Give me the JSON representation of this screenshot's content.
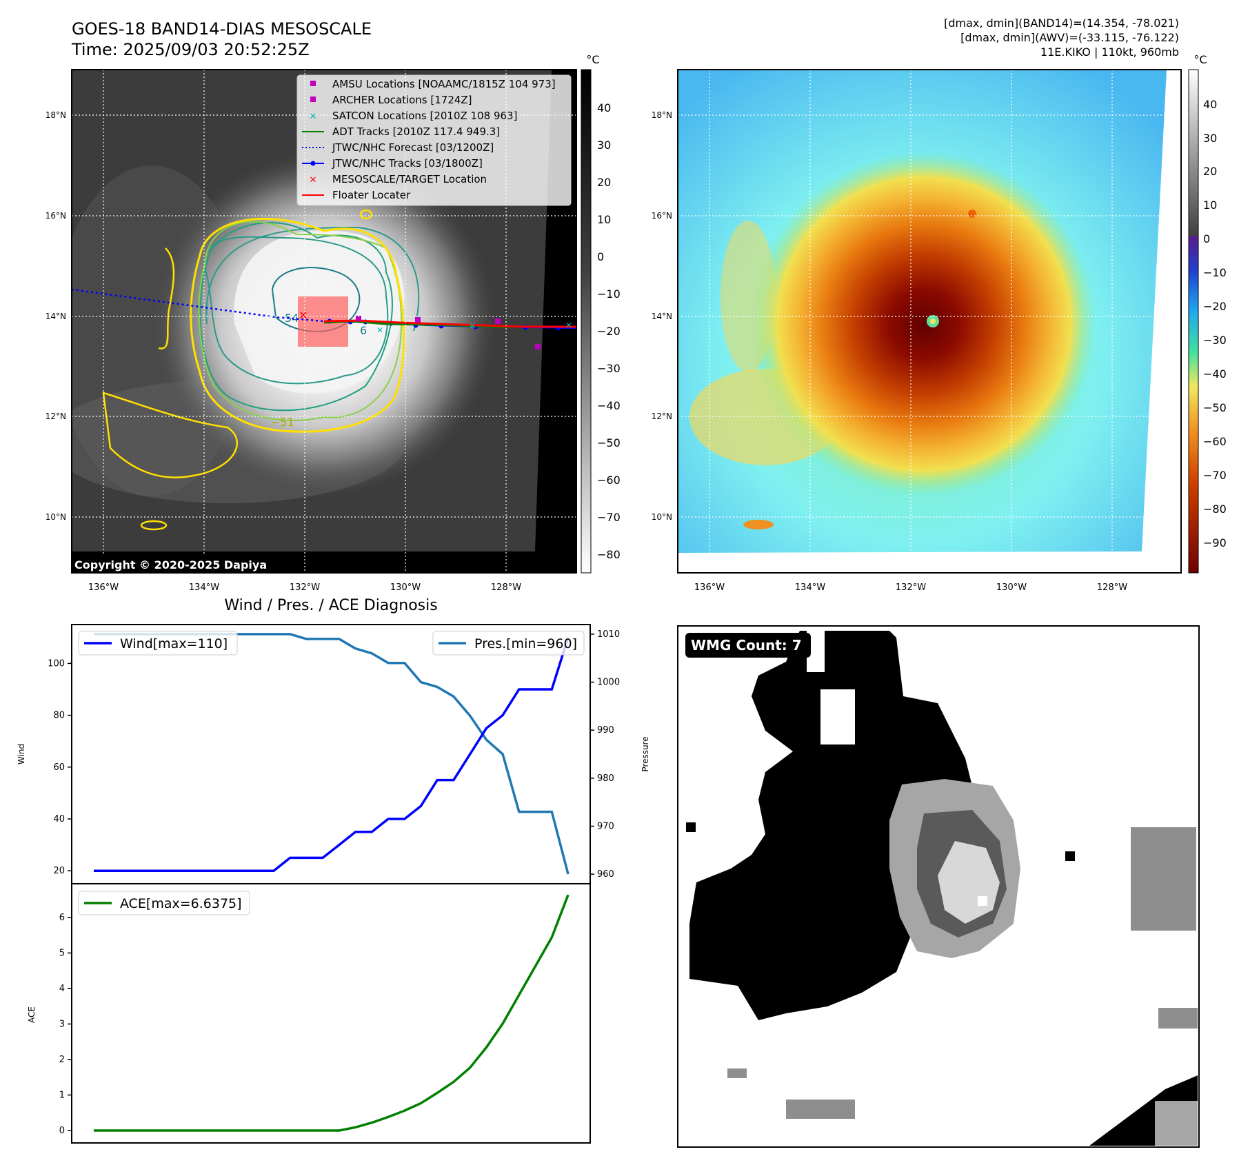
{
  "header": {
    "title": "GOES-18 BAND14-DIAS MESOSCALE",
    "time": "Time: 2025/09/03 20:52:25Z",
    "stats_band14": "[dmax, dmin](BAND14)=(14.354, -78.021)",
    "stats_awv": "[dmax, dmin](AWV)=(-33.115, -76.122)",
    "storm": "11E.KIKO | 110kt, 960mb"
  },
  "maps": {
    "lon_ticks": [
      "136°W",
      "134°W",
      "132°W",
      "130°W",
      "128°W"
    ],
    "lat_ticks": [
      "18°N",
      "16°N",
      "14°N",
      "12°N",
      "10°N"
    ],
    "copyright": "Copyright © 2020-2025 Dapiya",
    "unit": "°C",
    "ir_colorbar_ticks": [
      "40",
      "30",
      "20",
      "10",
      "0",
      "−10",
      "−20",
      "−30",
      "−40",
      "−50",
      "−60",
      "−70",
      "−80"
    ],
    "wv_colorbar_ticks": [
      "40",
      "30",
      "20",
      "10",
      "0",
      "−10",
      "−20",
      "−30",
      "−40",
      "−50",
      "−60",
      "−70",
      "−80",
      "−90"
    ],
    "contour_labels": [
      "54",
      "6",
      "−51"
    ]
  },
  "legend": {
    "items": [
      {
        "label": "AMSU Locations [NOAAMC/1815Z 104 973]",
        "color": "#c000c0",
        "marker": "square"
      },
      {
        "label": "ARCHER Locations [1724Z]",
        "color": "#c000c0",
        "marker": "square"
      },
      {
        "label": "SATCON Locations [2010Z 108 963]",
        "color": "#00b8b8",
        "marker": "x"
      },
      {
        "label": "ADT Tracks [2010Z 117.4 949.3]",
        "color": "#008000",
        "marker": "line"
      },
      {
        "label": "JTWC/NHC Forecast [03/1200Z]",
        "color": "#0000ff",
        "marker": "dotted"
      },
      {
        "label": "JTWC/NHC Tracks [03/1800Z]",
        "color": "#0000ff",
        "marker": "line-dot"
      },
      {
        "label": "MESOSCALE/TARGET Location",
        "color": "#ff0000",
        "marker": "x"
      },
      {
        "label": "Floater Locater",
        "color": "#ff0000",
        "marker": "line"
      }
    ]
  },
  "wmg": {
    "label": "WMG Count: 7"
  },
  "chart_data": [
    {
      "type": "line",
      "title": "Wind / Pres. / ACE Diagnosis",
      "x": [
        0,
        1,
        2,
        3,
        4,
        5,
        6,
        7,
        8,
        9,
        10,
        11,
        12,
        13,
        14,
        15,
        16,
        17,
        18,
        19,
        20,
        21,
        22,
        23,
        24,
        25,
        26,
        27,
        28,
        29
      ],
      "series": [
        {
          "name": "Wind[max=110]",
          "axis": "left",
          "color": "#0000ff",
          "values": [
            20,
            20,
            20,
            20,
            20,
            20,
            20,
            20,
            20,
            20,
            20,
            20,
            25,
            25,
            25,
            30,
            35,
            35,
            40,
            40,
            45,
            55,
            55,
            65,
            75,
            80,
            90,
            90,
            90,
            110
          ]
        },
        {
          "name": "Pres.[min=960]",
          "axis": "right",
          "color": "#1f77b4",
          "values": [
            1010,
            1010,
            1010,
            1010,
            1010,
            1010,
            1010,
            1010,
            1010,
            1010,
            1010,
            1010,
            1010,
            1009,
            1009,
            1009,
            1007,
            1006,
            1004,
            1004,
            1000,
            999,
            997,
            993,
            988,
            985,
            973,
            973,
            973,
            960
          ]
        }
      ],
      "ylabel": "Wind",
      "ylabel_right": "Pressure",
      "ylim": [
        15,
        115
      ],
      "ylim_right": [
        958,
        1012
      ],
      "yticks": [
        20,
        40,
        60,
        80,
        100
      ],
      "yticks_right": [
        960,
        970,
        980,
        990,
        1000,
        1010
      ]
    },
    {
      "type": "line",
      "x": [
        0,
        1,
        2,
        3,
        4,
        5,
        6,
        7,
        8,
        9,
        10,
        11,
        12,
        13,
        14,
        15,
        16,
        17,
        18,
        19,
        20,
        21,
        22,
        23,
        24,
        25,
        26,
        27,
        28,
        29
      ],
      "series": [
        {
          "name": "ACE[max=6.6375]",
          "color": "#008000",
          "values": [
            0,
            0,
            0,
            0,
            0,
            0,
            0,
            0,
            0,
            0,
            0,
            0,
            0,
            0,
            0,
            0,
            0.09,
            0.22,
            0.38,
            0.56,
            0.77,
            1.06,
            1.37,
            1.77,
            2.34,
            3.01,
            3.82,
            4.63,
            5.44,
            6.6375
          ]
        }
      ],
      "ylabel": "ACE",
      "ylim": [
        -0.35,
        6.95
      ],
      "yticks": [
        0,
        1,
        2,
        3,
        4,
        5,
        6
      ]
    }
  ]
}
